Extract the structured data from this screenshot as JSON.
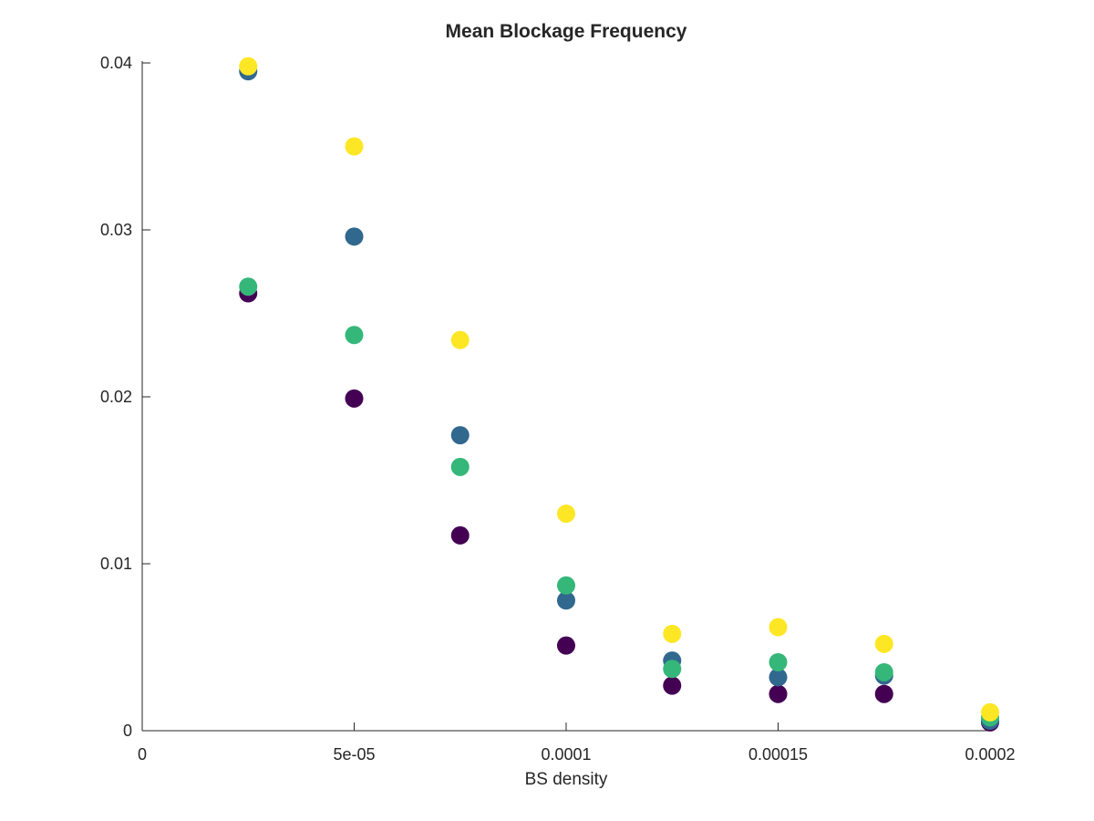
{
  "chart_data": {
    "type": "scatter",
    "title": "Mean Blockage Frequency",
    "xlabel": "BS density",
    "ylabel": "",
    "xlim": [
      0,
      0.0002
    ],
    "ylim": [
      0,
      0.04
    ],
    "x_ticks": [
      0,
      5e-05,
      0.0001,
      0.00015,
      0.0002
    ],
    "x_tick_labels": [
      "0",
      "5e-05",
      "0.0001",
      "0.00015",
      "0.0002"
    ],
    "y_ticks": [
      0,
      0.01,
      0.02,
      0.03,
      0.04
    ],
    "y_tick_labels": [
      "0",
      "0.01",
      "0.02",
      "0.03",
      "0.04"
    ],
    "grid": false,
    "legend": "none",
    "x": [
      2.5e-05,
      5e-05,
      7.5e-05,
      0.0001,
      0.000125,
      0.00015,
      0.000175,
      0.0002
    ],
    "series": [
      {
        "color": "#440154",
        "values": [
          0.0262,
          0.0199,
          0.0117,
          0.0051,
          0.0027,
          0.0022,
          0.0022,
          0.0005
        ]
      },
      {
        "color": "#31688e",
        "values": [
          0.0395,
          0.0296,
          0.0177,
          0.0078,
          0.0042,
          0.0032,
          0.0033,
          0.0006
        ]
      },
      {
        "color": "#35b779",
        "values": [
          0.0266,
          0.0237,
          0.0158,
          0.0087,
          0.0037,
          0.0041,
          0.0035,
          0.0008
        ]
      },
      {
        "color": "#fde725",
        "values": [
          0.0398,
          0.035,
          0.0234,
          0.013,
          0.0058,
          0.0062,
          0.0052,
          0.0011
        ]
      }
    ]
  }
}
